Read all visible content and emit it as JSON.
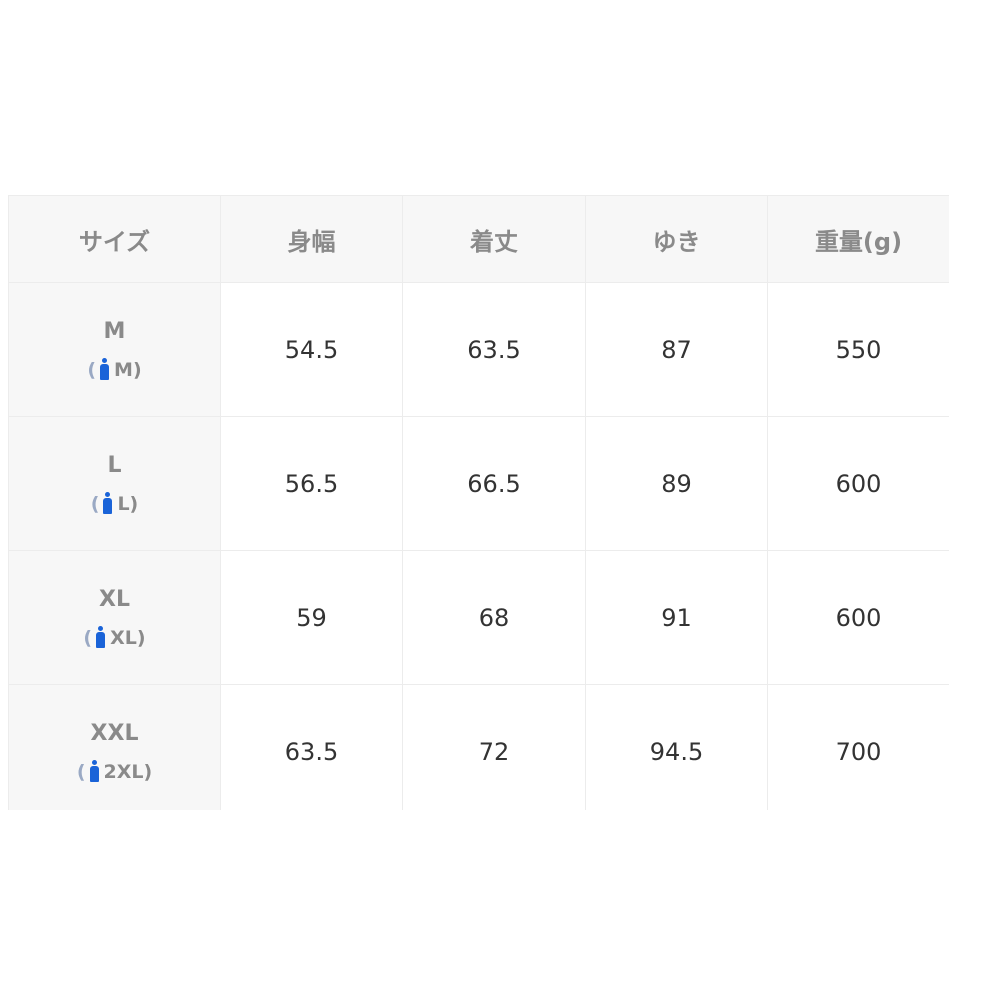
{
  "table": {
    "headers": [
      "サイズ",
      "身幅",
      "着丈",
      "ゆき",
      "重量(g)"
    ],
    "rows": [
      {
        "size": "M",
        "alt_size": "M",
        "values": [
          "54.5",
          "63.5",
          "87",
          "550"
        ]
      },
      {
        "size": "L",
        "alt_size": "L",
        "values": [
          "56.5",
          "66.5",
          "89",
          "600"
        ]
      },
      {
        "size": "XL",
        "alt_size": "XL",
        "values": [
          "59",
          "68",
          "91",
          "600"
        ]
      },
      {
        "size": "XXL",
        "alt_size": "2XL",
        "values": [
          "63.5",
          "72",
          "94.5",
          "700"
        ]
      }
    ],
    "alt_size_icon": "person-icon",
    "icon_color": "#1a63d8"
  }
}
